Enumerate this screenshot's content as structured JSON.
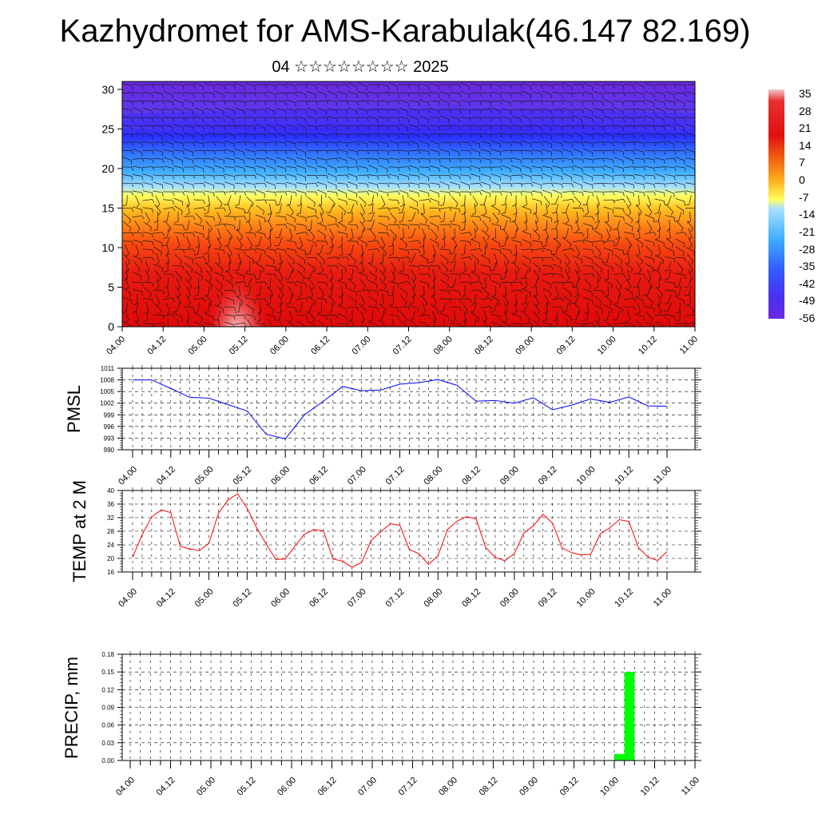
{
  "header": {
    "title": "Kazhydromet for AMS-Karabulak(46.147 82.169)",
    "subtitle": "04 ☆☆☆☆☆☆☆☆ 2025"
  },
  "time_labels": [
    "04.00",
    "04.12",
    "05.00",
    "05.12",
    "06.00",
    "06.12",
    "07.00",
    "07.12",
    "08.00",
    "08.12",
    "09.00",
    "09.12",
    "10.00",
    "10.12",
    "11.00"
  ],
  "colorbar": {
    "labels": [
      "35",
      "28",
      "21",
      "14",
      "7",
      "0",
      "-7",
      "-14",
      "-21",
      "-28",
      "-35",
      "-42",
      "-49",
      "-56"
    ]
  },
  "chart_data": [
    {
      "type": "heatmap",
      "title": "04 ☆☆☆☆☆☆☆☆ 2025",
      "yticks": [
        0,
        5,
        10,
        15,
        20,
        25,
        30
      ],
      "ylim": [
        0,
        31
      ],
      "xlim": [
        0,
        168
      ],
      "description_of_levels": "temperature field with wind barbs",
      "colormap_labels": [
        "35",
        "28",
        "21",
        "14",
        "7",
        "0",
        "-7",
        "-14",
        "-21",
        "-28",
        "-35",
        "-42",
        "-49",
        "-56"
      ],
      "colors": {
        "hot": "#f0f0f0",
        "red": "#e81010",
        "orange": "#ff8c1a",
        "yellow": "#ffff40",
        "cyan": "#40b8ff",
        "blue": "#1a3cff",
        "violet": "#6e2ae0"
      }
    },
    {
      "type": "line",
      "ylabel": "PMSL",
      "yticks": [
        990,
        993,
        996,
        999,
        1002,
        1005,
        1008,
        1011
      ],
      "ylim": [
        990,
        1011
      ],
      "color": "#0000ff",
      "x": [
        0,
        6,
        12,
        18,
        24,
        30,
        36,
        42,
        48,
        54,
        60,
        66,
        72,
        78,
        84,
        90,
        96,
        102,
        108,
        114,
        120,
        126,
        132,
        138,
        144,
        150,
        156,
        162,
        168
      ],
      "values": [
        1008,
        1008,
        1005.8,
        1003.5,
        1003.3,
        1001.6,
        1000,
        994,
        992.8,
        999,
        1002.5,
        1006.3,
        1005.2,
        1005.4,
        1006.9,
        1007.3,
        1008.1,
        1006.6,
        1002.5,
        1002.7,
        1002,
        1003.4,
        1000.3,
        1001.5,
        1003.1,
        1002.2,
        1003.6,
        1001.3,
        1001.2
      ]
    },
    {
      "type": "line",
      "ylabel": "TEMP at 2 M",
      "yticks": [
        16,
        20,
        24,
        28,
        32,
        36,
        40
      ],
      "ylim": [
        16,
        40
      ],
      "color": "#ff0000",
      "x": [
        0,
        3,
        6,
        9,
        12,
        15,
        18,
        21,
        24,
        27,
        30,
        33,
        36,
        39,
        42,
        45,
        48,
        51,
        54,
        57,
        60,
        63,
        66,
        69,
        72,
        75,
        78,
        81,
        84,
        87,
        90,
        93,
        96,
        99,
        102,
        105,
        108,
        111,
        114,
        117,
        120,
        123,
        126,
        129,
        132,
        135,
        138,
        141,
        144,
        147,
        150,
        153,
        156,
        159,
        162,
        165,
        168
      ],
      "values": [
        20.3,
        27,
        32.2,
        34.3,
        33.5,
        23.5,
        22.8,
        22.3,
        24.5,
        33.3,
        37.2,
        39,
        34.8,
        29,
        24.2,
        19.7,
        19.8,
        23.6,
        27.1,
        28.5,
        28.1,
        19.8,
        19.2,
        17.4,
        18.8,
        25.3,
        27.8,
        30.2,
        29.8,
        22.6,
        21.4,
        18.2,
        20.8,
        28.5,
        31,
        32.3,
        31.6,
        23.2,
        20.3,
        19.3,
        21.4,
        27.5,
        29.6,
        33,
        30.4,
        23.1,
        21.7,
        21,
        21.2,
        27.2,
        29,
        31.4,
        30.9,
        23.2,
        20.4,
        19.4,
        22
      ]
    },
    {
      "type": "bar",
      "ylabel": "PRECIP, mm",
      "yticks": [
        "0.00",
        "0.03",
        "0.06",
        "0.09",
        "0.12",
        "0.15",
        "0.18"
      ],
      "ylim": [
        0,
        0.18
      ],
      "color": "#00ff00",
      "x_start": [
        144,
        147
      ],
      "values": [
        0.011,
        0.15
      ]
    }
  ]
}
